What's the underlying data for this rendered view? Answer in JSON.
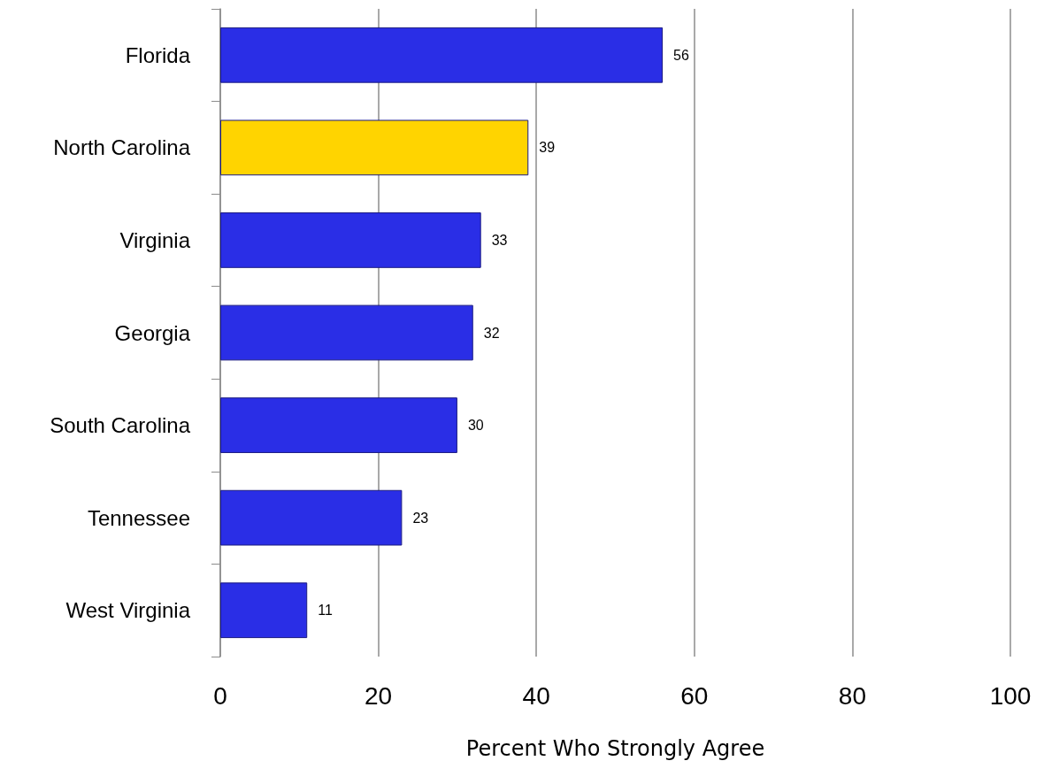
{
  "chart_data": {
    "type": "bar",
    "orientation": "horizontal",
    "xlabel": "Percent Who Strongly Agree",
    "categories": [
      "Florida",
      "North Carolina",
      "Virginia",
      "Georgia",
      "South Carolina",
      "Tennessee",
      "West Virginia"
    ],
    "values": [
      56,
      39,
      33,
      32,
      30,
      23,
      11
    ],
    "colors": [
      "#2a2ee6",
      "#ffd400",
      "#2a2ee6",
      "#2a2ee6",
      "#2a2ee6",
      "#2a2ee6",
      "#2a2ee6"
    ],
    "xlim": [
      0,
      100
    ],
    "xticks": [
      0,
      20,
      40,
      60,
      80,
      100
    ],
    "grid": "x",
    "data_labels": true
  }
}
